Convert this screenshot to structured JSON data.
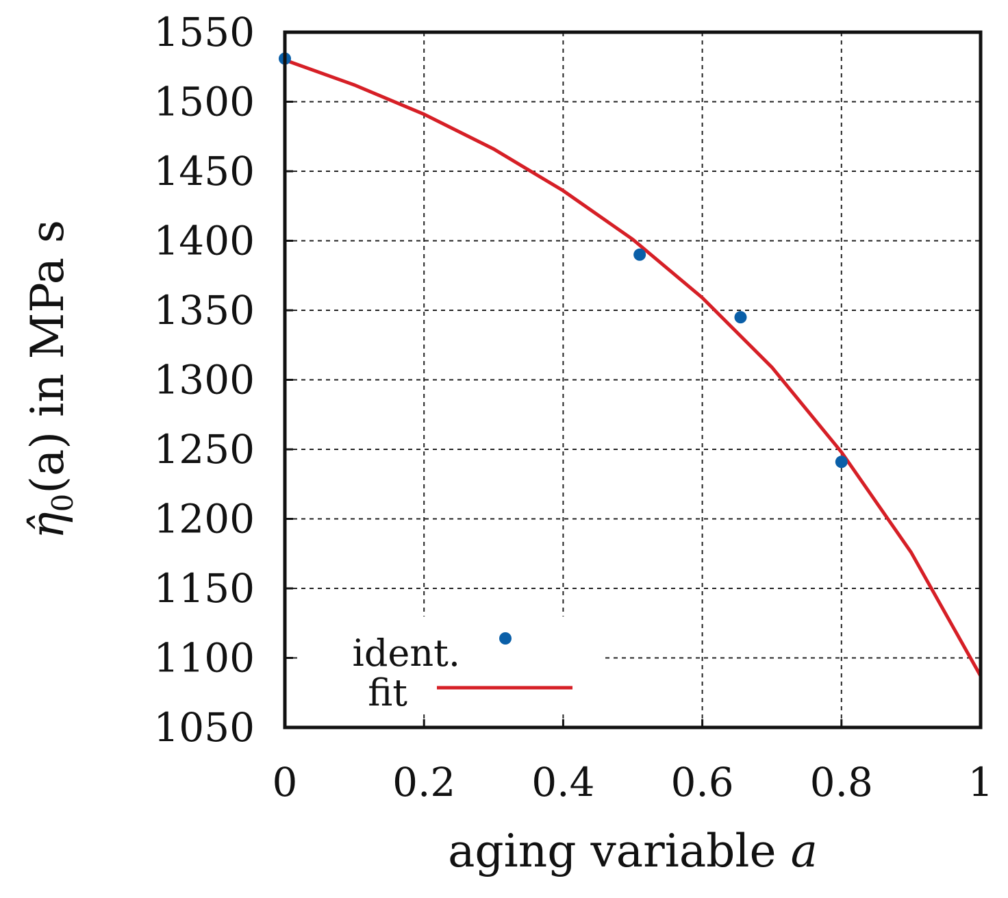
{
  "chart_data": {
    "type": "scatter",
    "title": "",
    "xlabel": "aging variable",
    "xlabel_var": "a",
    "ylabel": "in MPa s",
    "ylabel_symbol": "η̂",
    "ylabel_sub": "0",
    "ylabel_arg": "(a)",
    "xlim": [
      0,
      1
    ],
    "ylim": [
      1050,
      1550
    ],
    "xticks": [
      0,
      0.2,
      0.4,
      0.6,
      0.8,
      1
    ],
    "xtick_labels": [
      "0",
      "0.2",
      "0.4",
      "0.6",
      "0.8",
      "1"
    ],
    "yticks": [
      1050,
      1100,
      1150,
      1200,
      1250,
      1300,
      1350,
      1400,
      1450,
      1500,
      1550
    ],
    "ytick_labels": [
      "1050",
      "1100",
      "1150",
      "1200",
      "1250",
      "1300",
      "1350",
      "1400",
      "1450",
      "1500",
      "1550"
    ],
    "grid": true,
    "legend_position": "bottom-left",
    "series": [
      {
        "name": "ident.",
        "kind": "points",
        "color": "#0a5fa8",
        "x": [
          0.0,
          0.51,
          0.655,
          0.8
        ],
        "y": [
          1531,
          1390,
          1345,
          1241
        ]
      },
      {
        "name": "fit",
        "kind": "line",
        "color": "#d61f26",
        "x": [
          0.0,
          0.1,
          0.2,
          0.3,
          0.4,
          0.5,
          0.6,
          0.7,
          0.8,
          0.9,
          1.0
        ],
        "y": [
          1530,
          1512,
          1491,
          1466,
          1436,
          1401,
          1359,
          1309,
          1248,
          1176,
          1087
        ]
      }
    ]
  }
}
